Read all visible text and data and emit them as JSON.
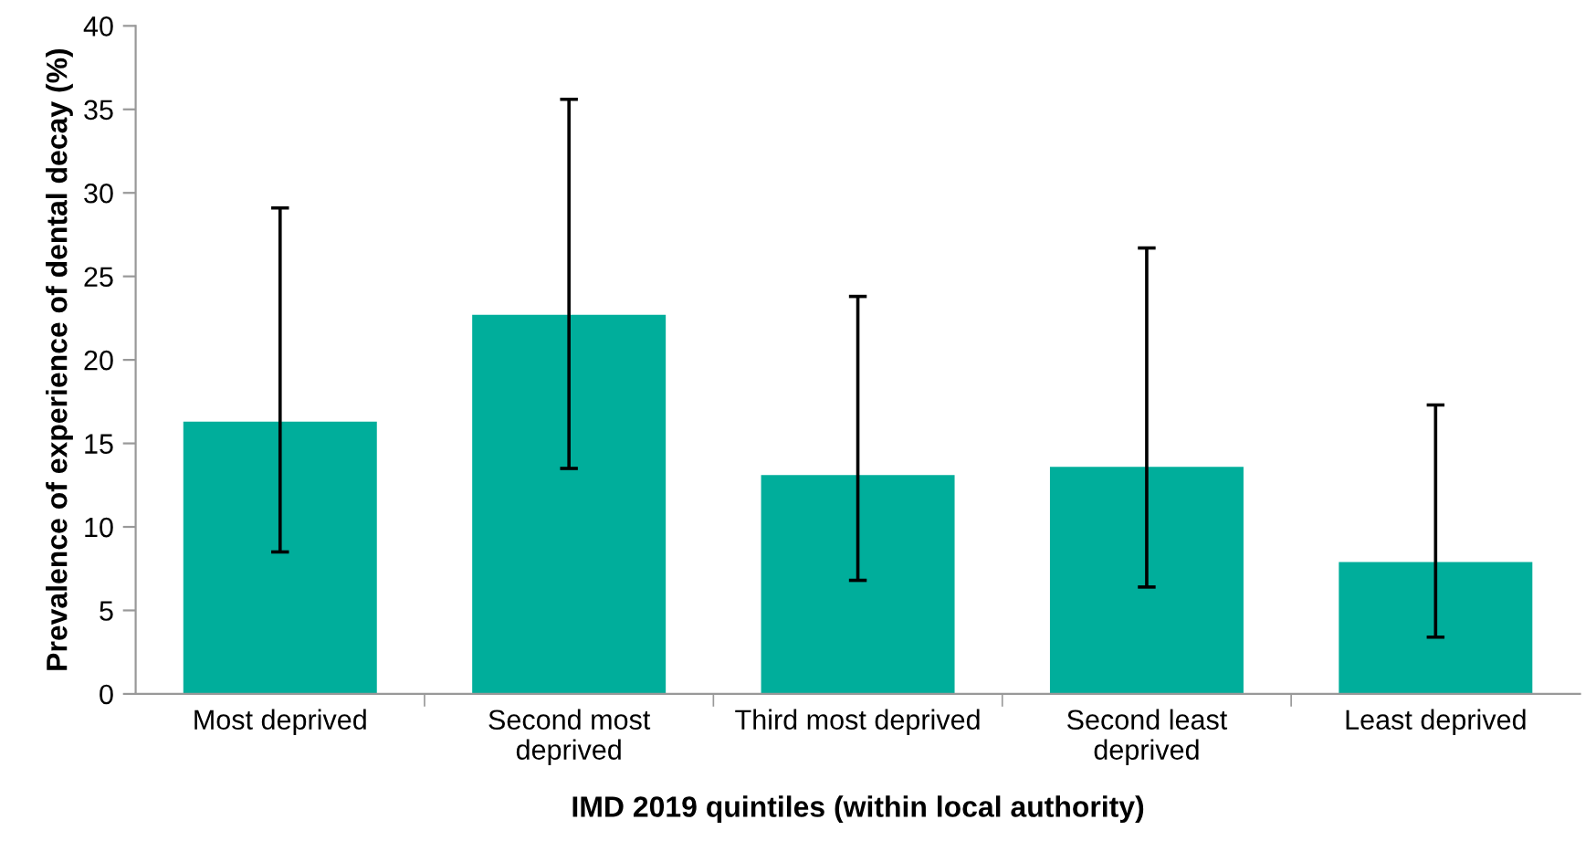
{
  "chart_data": {
    "type": "bar",
    "xlabel": "IMD 2019 quintiles (within local authority)",
    "ylabel": "Prevalence of experience of dental decay (%)",
    "categories": [
      "Most deprived",
      "Second most\ndeprived",
      "Third most deprived",
      "Second least\ndeprived",
      "Least deprived"
    ],
    "values": [
      16.3,
      22.7,
      13.1,
      13.6,
      7.9
    ],
    "errors": [
      [
        8.5,
        29.1
      ],
      [
        13.5,
        35.6
      ],
      [
        6.8,
        23.8
      ],
      [
        6.4,
        26.7
      ],
      [
        3.4,
        17.3
      ]
    ],
    "color": "#00ae9b",
    "ylim": [
      0,
      40
    ],
    "yticks": [
      0,
      5,
      10,
      15,
      20,
      25,
      30,
      35,
      40
    ],
    "grid": false,
    "legend": false
  }
}
